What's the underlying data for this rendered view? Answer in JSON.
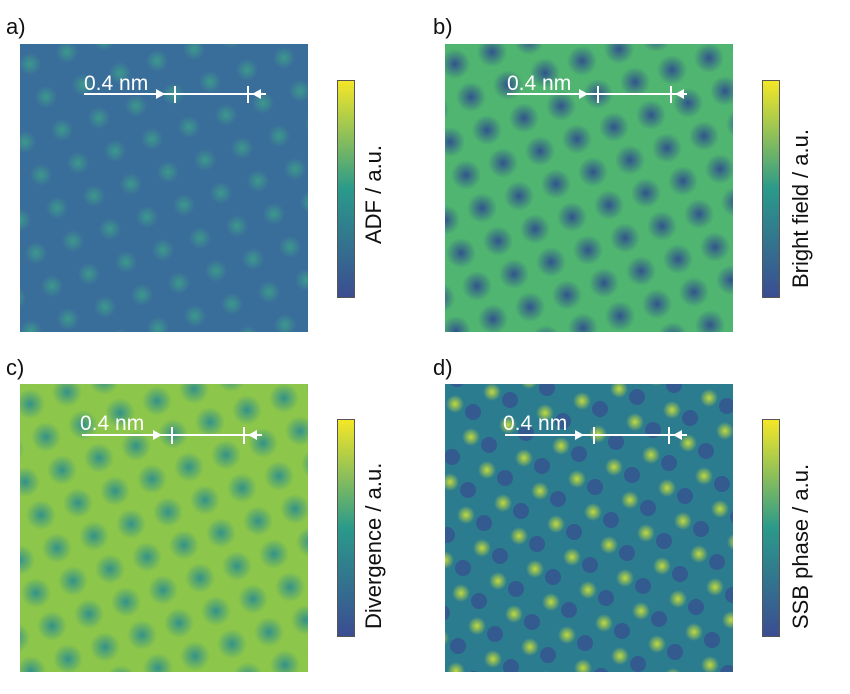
{
  "colors": {
    "viridis_low": "#3b4d92",
    "viridis_mid": "#2a9a8a",
    "viridis_high": "#f5e726",
    "scale_bar": "#ffffff"
  },
  "panels": [
    {
      "letter": "a)",
      "scale_label": "0.4 nm",
      "colorbar_label": "ADF / a.u.",
      "kind": "adf",
      "background": "#3a6e9a",
      "spot": "#3d9b8c"
    },
    {
      "letter": "b)",
      "scale_label": "0.4 nm",
      "colorbar_label": "Bright field / a.u.",
      "kind": "bf",
      "background": "#4fb570",
      "spot": "#2f4f8e"
    },
    {
      "letter": "c)",
      "scale_label": "0.4 nm",
      "colorbar_label": "Divergence / a.u.",
      "kind": "div",
      "background": "#8cc64a",
      "spot": "#2f8f8c"
    },
    {
      "letter": "d)",
      "scale_label": "0.4 nm",
      "colorbar_label": "SSB phase / a.u.",
      "kind": "ssb",
      "background": "#2b7c8e",
      "spot": "#c9df3a"
    }
  ]
}
